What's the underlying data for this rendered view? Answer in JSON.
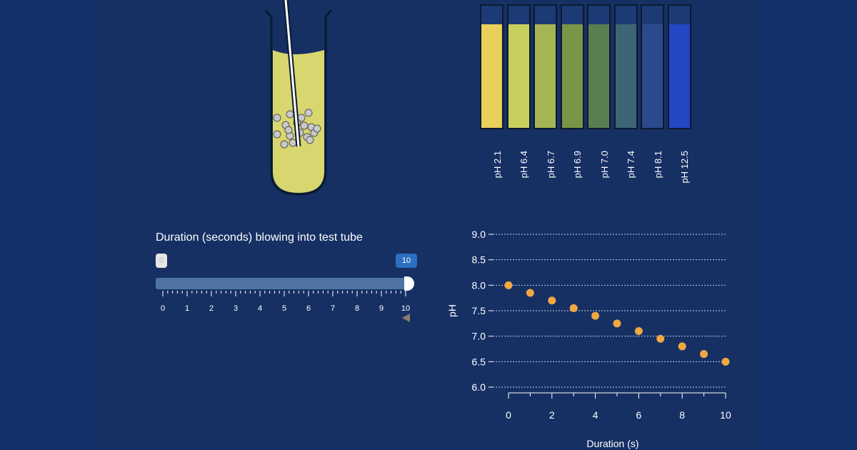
{
  "indicator": {
    "labels": [
      "pH 2.1",
      "pH 6.4",
      "pH 6.7",
      "pH 6.9",
      "pH 7.0",
      "pH 7.4",
      "pH 8.1",
      "pH 12.5"
    ],
    "colors": [
      "#e8d05a",
      "#c9cf5c",
      "#a6b553",
      "#7a9548",
      "#5a7d52",
      "#3d6675",
      "#2b4a8c",
      "#2447c4"
    ]
  },
  "slider": {
    "title": "Duration (seconds) blowing into test tube",
    "min_value": "0",
    "max_value": "10",
    "ticks": [
      "0",
      "1",
      "2",
      "3",
      "4",
      "5",
      "6",
      "7",
      "8",
      "9",
      "10"
    ]
  },
  "colors": {
    "solution": "#d8d66f",
    "dots": "#f0a842",
    "slider_active": "#2d6fc0"
  },
  "chart_data": {
    "type": "scatter",
    "x": [
      0,
      1,
      2,
      3,
      4,
      5,
      6,
      7,
      8,
      9,
      10
    ],
    "y": [
      8.0,
      7.85,
      7.7,
      7.55,
      7.4,
      7.25,
      7.1,
      6.95,
      6.8,
      6.65,
      6.5
    ],
    "xlabel": "Duration (s)",
    "ylabel": "pH",
    "xlim": [
      0,
      10
    ],
    "ylim": [
      6.0,
      9.0
    ],
    "xticks": [
      "0",
      "2",
      "4",
      "6",
      "8",
      "10"
    ],
    "yticks": [
      "6.0",
      "6.5",
      "7.0",
      "7.5",
      "8.0",
      "8.5",
      "9.0"
    ],
    "grid": "horizontal-dashed"
  }
}
